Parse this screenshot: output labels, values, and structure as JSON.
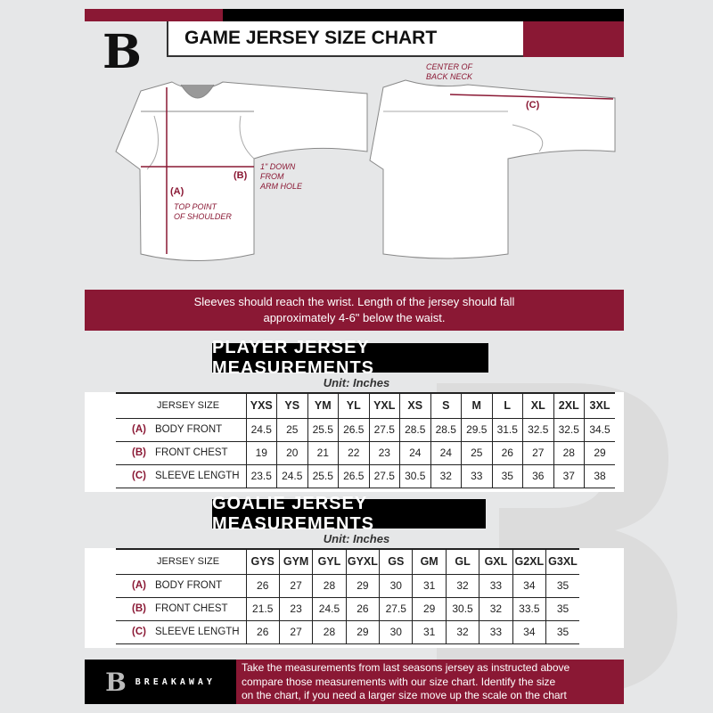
{
  "header": {
    "title": "GAME JERSEY SIZE CHART",
    "logo": "B"
  },
  "diagram": {
    "a_label": "(A)",
    "a_note": [
      "TOP POINT",
      "OF SHOULDER"
    ],
    "b_label": "(B)",
    "b_note": [
      "1\" DOWN",
      "FROM",
      "ARM HOLE"
    ],
    "c_label": "(C)",
    "c_note": [
      "CENTER OF",
      "BACK NECK"
    ]
  },
  "banner": {
    "line1": "Sleeves should reach the wrist. Length of the jersey should fall",
    "line2": "approximately 4-6\" below the waist."
  },
  "player": {
    "title": "PLAYER JERSEY MEASUREMENTS",
    "unit": "Unit: Inches",
    "size_label": "JERSEY SIZE",
    "sizes": [
      "YXS",
      "YS",
      "YM",
      "YL",
      "YXL",
      "XS",
      "S",
      "M",
      "L",
      "XL",
      "2XL",
      "3XL"
    ],
    "rows": [
      {
        "key": "(A)",
        "name": "BODY FRONT",
        "values": [
          "24.5",
          "25",
          "25.5",
          "26.5",
          "27.5",
          "28.5",
          "28.5",
          "29.5",
          "31.5",
          "32.5",
          "32.5",
          "34.5"
        ]
      },
      {
        "key": "(B)",
        "name": "FRONT CHEST",
        "values": [
          "19",
          "20",
          "21",
          "22",
          "23",
          "24",
          "24",
          "25",
          "26",
          "27",
          "28",
          "29"
        ]
      },
      {
        "key": "(C)",
        "name": "SLEEVE LENGTH",
        "values": [
          "23.5",
          "24.5",
          "25.5",
          "26.5",
          "27.5",
          "30.5",
          "32",
          "33",
          "35",
          "36",
          "37",
          "38"
        ]
      }
    ]
  },
  "goalie": {
    "title": "GOALIE JERSEY MEASUREMENTS",
    "unit": "Unit: Inches",
    "size_label": "JERSEY SIZE",
    "sizes": [
      "GYS",
      "GYM",
      "GYL",
      "GYXL",
      "GS",
      "GM",
      "GL",
      "GXL",
      "G2XL",
      "G3XL"
    ],
    "rows": [
      {
        "key": "(A)",
        "name": "BODY FRONT",
        "values": [
          "26",
          "27",
          "28",
          "29",
          "30",
          "31",
          "32",
          "33",
          "34",
          "35"
        ]
      },
      {
        "key": "(B)",
        "name": "FRONT CHEST",
        "values": [
          "21.5",
          "23",
          "24.5",
          "26",
          "27.5",
          "29",
          "30.5",
          "32",
          "33.5",
          "35"
        ]
      },
      {
        "key": "(C)",
        "name": "SLEEVE LENGTH",
        "values": [
          "26",
          "27",
          "28",
          "29",
          "30",
          "31",
          "32",
          "33",
          "34",
          "35"
        ]
      }
    ]
  },
  "footer": {
    "brand": "BREAKAWAY",
    "logo": "B",
    "text": [
      "Take the measurements from last seasons jersey as instructed above",
      "compare those measurements  with our size chart. Identify the size",
      "on the chart, if you need a larger size move up the scale on the chart"
    ]
  },
  "colors": {
    "maroon": "#8a1834",
    "black": "#000000",
    "background": "#e6e7e8"
  }
}
